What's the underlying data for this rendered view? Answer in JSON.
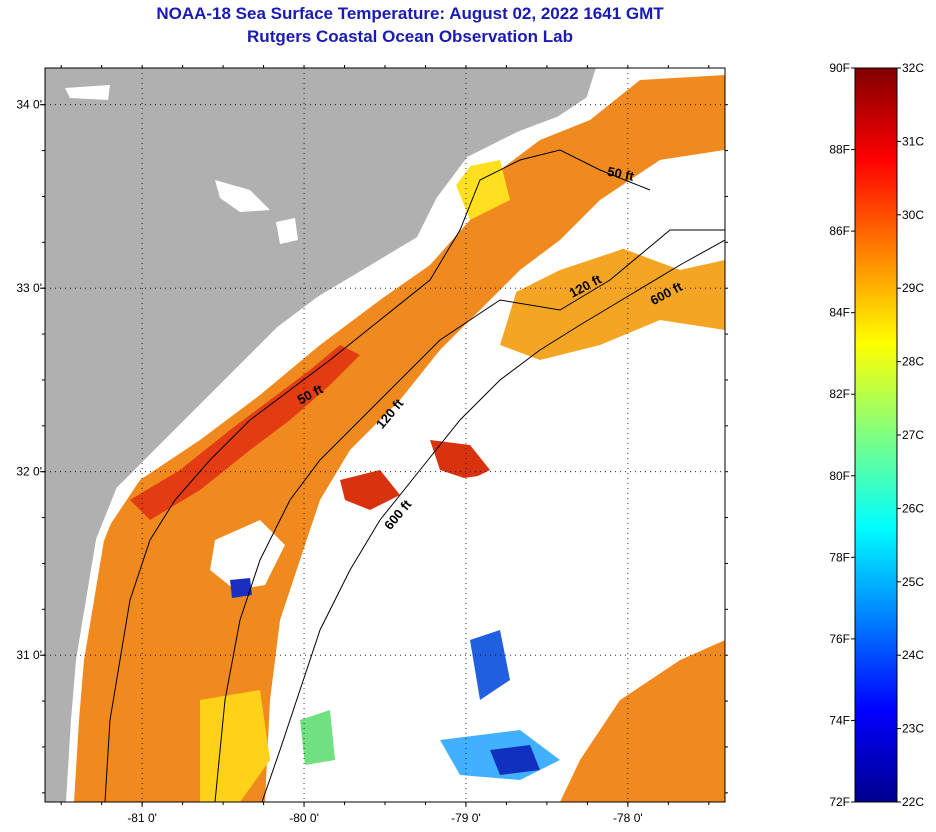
{
  "title_line1": "NOAA-18 Sea Surface Temperature:  August 02, 2022 1641 GMT",
  "title_line2": "Rutgers Coastal Ocean Observation Lab",
  "map": {
    "lon_range": [
      -81.6,
      -77.4
    ],
    "lat_range": [
      30.2,
      34.2
    ],
    "lon_ticks": [
      {
        "value": -81,
        "label": "-81 0'"
      },
      {
        "value": -80,
        "label": "-80 0'"
      },
      {
        "value": -79,
        "label": "-79 0'"
      },
      {
        "value": -78,
        "label": "-78 0'"
      }
    ],
    "lat_ticks": [
      {
        "value": 34,
        "label": "34 0'"
      },
      {
        "value": 33,
        "label": "33 0'"
      },
      {
        "value": 32,
        "label": "32 0'"
      },
      {
        "value": 31,
        "label": "31 0'"
      }
    ],
    "grid": "dotted",
    "colors": {
      "land": "#b0b0b0",
      "ocean_warm": "#f08a1e",
      "ocean_hot": "#e33b12",
      "cloud": "#ffffff"
    },
    "contour_labels": [
      {
        "label": "50 ft",
        "lon": -78.05,
        "lat": 33.6,
        "angle": 12
      },
      {
        "label": "120 ft",
        "lon": -78.25,
        "lat": 32.99,
        "angle": -28
      },
      {
        "label": "600 ft",
        "lon": -77.75,
        "lat": 32.95,
        "angle": -28
      },
      {
        "label": "50 ft",
        "lon": -79.95,
        "lat": 32.4,
        "angle": -28
      },
      {
        "label": "120 ft",
        "lon": -79.45,
        "lat": 32.3,
        "angle": -50
      },
      {
        "label": "600 ft",
        "lon": -79.4,
        "lat": 31.75,
        "angle": -50
      }
    ]
  },
  "colorbar": {
    "colors": [
      "#00008f",
      "#0000ff",
      "#0080ff",
      "#00ffff",
      "#80ff80",
      "#ffff00",
      "#ff8000",
      "#ff0000",
      "#800000"
    ],
    "fahrenheit_labels": [
      "90F",
      "88F",
      "86F",
      "84F",
      "82F",
      "80F",
      "78F",
      "76F",
      "74F",
      "72F"
    ],
    "celsius_labels": [
      "32C",
      "31C",
      "30C",
      "29C",
      "28C",
      "27C",
      "26C",
      "25C",
      "24C",
      "23C",
      "22C"
    ]
  }
}
